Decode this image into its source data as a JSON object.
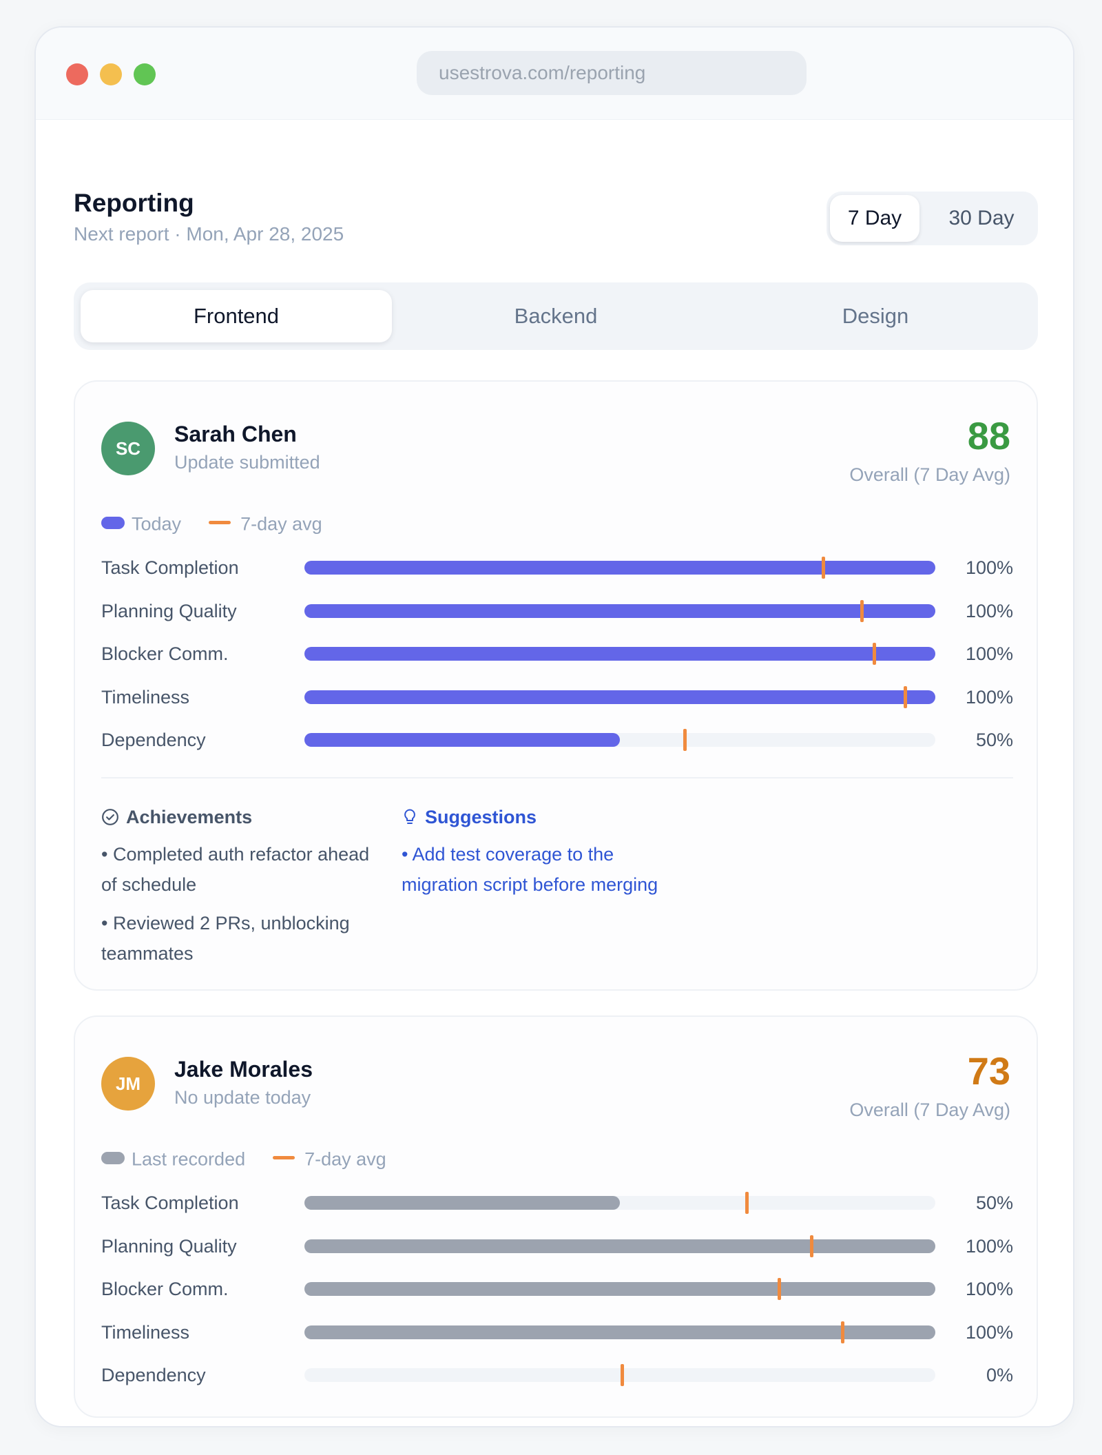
{
  "browser": {
    "url": "usestrova.com/reporting"
  },
  "header": {
    "title": "Reporting",
    "subtitle": "Next report · Mon, Apr 28, 2025",
    "range_options": [
      "7 Day",
      "30 Day"
    ],
    "selected_range": "7 Day"
  },
  "tabs": [
    {
      "label": "Frontend",
      "active": true
    },
    {
      "label": "Backend",
      "active": false
    },
    {
      "label": "Design",
      "active": false
    }
  ],
  "members": [
    {
      "initials": "SC",
      "name": "Sarah Chen",
      "status": "Update submitted",
      "score": "88",
      "score_label": "Overall (7 Day Avg)",
      "avatar_color": "#4a9a6f",
      "score_color": "#3a9a42",
      "bar_color": "#6366e8",
      "legend_bar_label": "Today",
      "legend_avg_label": "7-day avg",
      "metrics": [
        {
          "label": "Task Completion",
          "value": 1.0,
          "avg": 0.822,
          "display": "100%"
        },
        {
          "label": "Planning Quality",
          "value": 1.0,
          "avg": 0.883,
          "display": "100%"
        },
        {
          "label": "Blocker Comm.",
          "value": 1.0,
          "avg": 0.903,
          "display": "100%"
        },
        {
          "label": "Timeliness",
          "value": 1.0,
          "avg": 0.952,
          "display": "100%"
        },
        {
          "label": "Dependency",
          "value": 0.5,
          "avg": 0.603,
          "display": "50%"
        }
      ],
      "achievements_title": "Achievements",
      "achievements": [
        "• Completed auth refactor ahead of schedule",
        "• Reviewed 2 PRs, unblocking teammates"
      ],
      "suggestions_title": "Suggestions",
      "suggestions": [
        "• Add test coverage to the migration script before merging"
      ]
    },
    {
      "initials": "JM",
      "name": "Jake Morales",
      "status": "No update today",
      "score": "73",
      "score_label": "Overall (7 Day Avg)",
      "avatar_color": "#e6a33d",
      "score_color": "#d07a16",
      "bar_color": "#9ca3af",
      "legend_bar_label": "Last recorded",
      "legend_avg_label": "7-day avg",
      "metrics": [
        {
          "label": "Task Completion",
          "value": 0.5,
          "avg": 0.701,
          "display": "50%"
        },
        {
          "label": "Planning Quality",
          "value": 1.0,
          "avg": 0.803,
          "display": "100%"
        },
        {
          "label": "Blocker Comm.",
          "value": 1.0,
          "avg": 0.752,
          "display": "100%"
        },
        {
          "label": "Timeliness",
          "value": 1.0,
          "avg": 0.853,
          "display": "100%"
        },
        {
          "label": "Dependency",
          "value": 0.0,
          "avg": 0.503,
          "display": "0%"
        }
      ]
    }
  ]
}
